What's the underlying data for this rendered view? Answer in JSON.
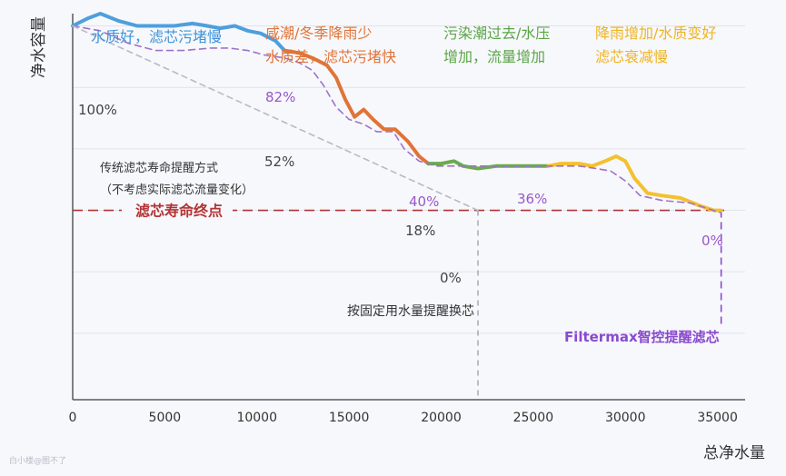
{
  "chart_data": {
    "type": "line",
    "xlabel": "总净水量",
    "ylabel": "净水容量",
    "xlim": [
      0,
      36500
    ],
    "ylim": [
      -52,
      105
    ],
    "x_ticks": [
      0,
      5000,
      10000,
      15000,
      20000,
      25000,
      30000,
      35000
    ],
    "y_gridlines": [
      100,
      75,
      50,
      25,
      0,
      -25
    ],
    "grid": "horizontal",
    "series": [
      {
        "color": "#4e9fdc",
        "points": [
          [
            0,
            100
          ],
          [
            800,
            103
          ],
          [
            1500,
            105
          ],
          [
            2500,
            102
          ],
          [
            3500,
            100
          ],
          [
            4500,
            100
          ],
          [
            5500,
            100
          ],
          [
            6500,
            101
          ],
          [
            7300,
            100
          ],
          [
            8000,
            99
          ],
          [
            8800,
            100
          ],
          [
            9500,
            98
          ],
          [
            10200,
            97
          ],
          [
            11000,
            94
          ],
          [
            11500,
            90
          ]
        ]
      },
      {
        "color": "#e07438",
        "points": [
          [
            11500,
            90
          ],
          [
            12300,
            89
          ],
          [
            13000,
            87
          ],
          [
            13800,
            84
          ],
          [
            14300,
            79
          ],
          [
            14800,
            70
          ],
          [
            15300,
            63
          ],
          [
            15800,
            66
          ],
          [
            16300,
            62
          ],
          [
            16900,
            58
          ],
          [
            17500,
            58
          ],
          [
            18200,
            53
          ],
          [
            18800,
            47
          ],
          [
            19300,
            44
          ]
        ]
      },
      {
        "color": "#6aab4f",
        "points": [
          [
            19300,
            44
          ],
          [
            20000,
            44
          ],
          [
            20700,
            45
          ],
          [
            21200,
            43
          ],
          [
            22000,
            42
          ],
          [
            23000,
            43
          ],
          [
            24500,
            43
          ],
          [
            25800,
            43
          ]
        ]
      },
      {
        "color": "#f5c030",
        "points": [
          [
            25800,
            43
          ],
          [
            26500,
            44
          ],
          [
            27500,
            44
          ],
          [
            28200,
            43
          ],
          [
            28900,
            45
          ],
          [
            29500,
            47
          ],
          [
            30000,
            45
          ],
          [
            30500,
            38
          ],
          [
            31200,
            32
          ],
          [
            32000,
            31
          ],
          [
            33000,
            30
          ],
          [
            34000,
            27
          ],
          [
            34800,
            25
          ],
          [
            35200,
            25
          ]
        ]
      },
      {
        "color": "#9f72c8",
        "dashed": true,
        "points": [
          [
            0,
            100
          ],
          [
            1500,
            98
          ],
          [
            3000,
            93
          ],
          [
            4500,
            90
          ],
          [
            6000,
            90
          ],
          [
            7500,
            91
          ],
          [
            8500,
            91
          ],
          [
            9500,
            90
          ],
          [
            10500,
            88
          ],
          [
            11500,
            87
          ],
          [
            12300,
            85
          ],
          [
            13000,
            82
          ],
          [
            13600,
            76
          ],
          [
            14300,
            67
          ],
          [
            15000,
            62
          ],
          [
            15800,
            60
          ],
          [
            16500,
            57
          ],
          [
            17400,
            57
          ],
          [
            18000,
            50
          ],
          [
            18800,
            45
          ],
          [
            19800,
            43
          ],
          [
            21500,
            43
          ],
          [
            23000,
            43
          ],
          [
            24500,
            43
          ],
          [
            26000,
            43
          ],
          [
            27500,
            43
          ],
          [
            28400,
            42
          ],
          [
            29200,
            41
          ],
          [
            30000,
            37
          ],
          [
            30800,
            31
          ],
          [
            32000,
            29
          ],
          [
            33500,
            28
          ],
          [
            35200,
            24
          ]
        ]
      },
      {
        "color": "#b7bac4",
        "dashed": true,
        "points": [
          [
            0,
            100
          ],
          [
            22000,
            25
          ]
        ]
      }
    ],
    "reference_line": {
      "label": "滤芯寿命终点",
      "y": 25,
      "color": "#b23434"
    },
    "vertical_markers": [
      {
        "x": 22000,
        "label": "按固定用水量提醒换芯",
        "color": "#9a9da6"
      },
      {
        "x": 35200,
        "label": "Filtermax智控提醒滤芯",
        "color": "#8a4ad0"
      }
    ],
    "annotations": [
      {
        "text": "水质好，滤芯污堵慢",
        "color": "#3f93d8"
      },
      {
        "text": "咸潮/冬季降雨少",
        "color": "#e07438"
      },
      {
        "text": "水质差，滤芯污堵快",
        "color": "#e07438"
      },
      {
        "text": "污染潮过去/水压",
        "color": "#5aa546"
      },
      {
        "text": "增加，流量增加",
        "color": "#5aa546"
      },
      {
        "text": "降雨增加/水质变好",
        "color": "#efb421"
      },
      {
        "text": "滤芯衰减慢",
        "color": "#efb421"
      },
      {
        "text": "传统滤芯寿命提醒方式",
        "color": "#333333"
      },
      {
        "text": "（不考虑实际滤芯流量变化）",
        "color": "#333333"
      }
    ],
    "data_labels": [
      {
        "text": "100%",
        "color": "#444444"
      },
      {
        "text": "82%",
        "color": "#9a57cc"
      },
      {
        "text": "52%",
        "color": "#444444"
      },
      {
        "text": "40%",
        "color": "#9a57cc"
      },
      {
        "text": "18%",
        "color": "#444444"
      },
      {
        "text": "36%",
        "color": "#9a57cc"
      },
      {
        "text": "0%",
        "color": "#444444"
      },
      {
        "text": "0%",
        "color": "#9a57cc"
      }
    ]
  },
  "watermark": "白小楼@图不了"
}
